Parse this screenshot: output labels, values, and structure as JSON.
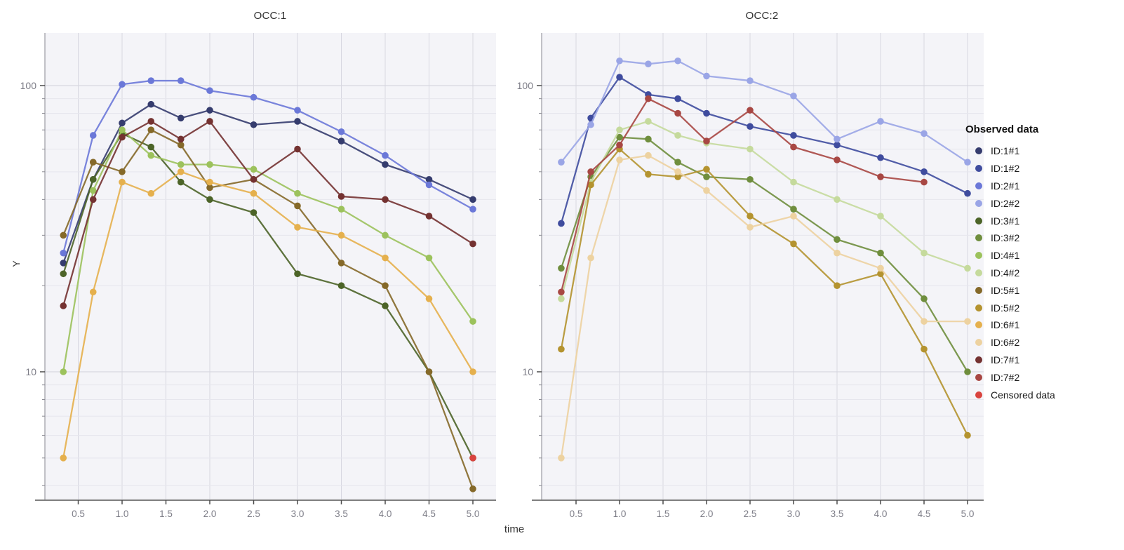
{
  "figure": {
    "bg": "#ffffff",
    "panel_bg": "#f4f4f8",
    "grid_minor": "#e6e6ed",
    "grid_major": "#d7d7e0",
    "spine_color": "#9a9aa2",
    "baseline_color": "#7f7f7f",
    "tick_color": "#4a4a4a",
    "tick_label_color": "#7d7d87"
  },
  "chart_data": {
    "type": "line",
    "xlabel": "time",
    "ylabel": "Y",
    "yscale": "log",
    "ylim": [
      3.5,
      155
    ],
    "x": [
      0.33,
      0.67,
      1.0,
      1.33,
      1.67,
      2.0,
      2.5,
      3.0,
      3.5,
      4.0,
      4.5,
      5.0
    ],
    "xticks": [
      0.5,
      1.0,
      1.5,
      2.0,
      2.5,
      3.0,
      3.5,
      4.0,
      4.5,
      5.0
    ],
    "yticks_major": [
      10,
      100
    ],
    "yticks_minor": [
      4,
      5,
      6,
      7,
      8,
      9,
      20,
      30,
      40,
      50,
      60,
      70,
      80,
      90
    ],
    "panels": [
      {
        "title": "OCC:1",
        "series": [
          {
            "name": "ID:1#1",
            "color": "#353c6e",
            "values": [
              24,
              47,
              74,
              86,
              77,
              82,
              73,
              75,
              64,
              53,
              47,
              40
            ]
          },
          {
            "name": "ID:2#1",
            "color": "#6b78d8",
            "values": [
              26,
              67,
              101,
              104,
              104,
              96,
              91,
              82,
              69,
              57,
              45,
              37
            ]
          },
          {
            "name": "ID:3#1",
            "color": "#4c6428",
            "values": [
              22,
              47,
              68,
              61,
              46,
              40,
              36,
              22,
              20,
              17,
              10,
              5
            ]
          },
          {
            "name": "ID:4#1",
            "color": "#9cc25c",
            "values": [
              10,
              43,
              70,
              57,
              53,
              53,
              51,
              42,
              37,
              30,
              25,
              15
            ]
          },
          {
            "name": "ID:5#1",
            "color": "#856929",
            "values": [
              30,
              54,
              50,
              70,
              62,
              44,
              47,
              38,
              24,
              20,
              10,
              3.9
            ]
          },
          {
            "name": "ID:6#1",
            "color": "#e5b04d",
            "values": [
              5,
              19,
              46,
              42,
              50,
              46,
              42,
              32,
              30,
              25,
              18,
              10
            ]
          },
          {
            "name": "ID:7#1",
            "color": "#743231",
            "values": [
              17,
              40,
              66,
              75,
              65,
              75,
              47,
              60,
              41,
              40,
              35,
              28
            ]
          }
        ],
        "censored": [
          {
            "t": 5.0,
            "v": 5
          }
        ]
      },
      {
        "title": "OCC:2",
        "series": [
          {
            "name": "ID:1#2",
            "color": "#3f4c9e",
            "values": [
              33,
              77,
              107,
              93,
              90,
              80,
              72,
              67,
              62,
              56,
              50,
              42
            ]
          },
          {
            "name": "ID:2#2",
            "color": "#9aa5e6",
            "values": [
              54,
              73,
              122,
              119,
              122,
              108,
              104,
              92,
              65,
              75,
              68,
              54
            ]
          },
          {
            "name": "ID:3#2",
            "color": "#6f8e3d",
            "values": [
              23,
              48,
              66,
              65,
              54,
              48,
              47,
              37,
              29,
              26,
              18,
              10
            ]
          },
          {
            "name": "ID:4#2",
            "color": "#c5da9c",
            "values": [
              18,
              46,
              70,
              75,
              67,
              63,
              60,
              46,
              40,
              35,
              26,
              23
            ]
          },
          {
            "name": "ID:5#2",
            "color": "#b4932f",
            "values": [
              12,
              45,
              60,
              49,
              48,
              51,
              35,
              28,
              20,
              22,
              12,
              6
            ]
          },
          {
            "name": "ID:6#2",
            "color": "#edd2a0",
            "values": [
              5,
              25,
              55,
              57,
              50,
              43,
              32,
              35,
              26,
              23,
              15,
              15
            ]
          },
          {
            "name": "ID:7#2",
            "color": "#a84743",
            "values": [
              19,
              50,
              62,
              90,
              80,
              64,
              82,
              61,
              55,
              48,
              46,
              null
            ]
          }
        ],
        "censored": []
      }
    ],
    "legend": {
      "title": "Observed data",
      "items": [
        {
          "label": "ID:1#1",
          "color": "#353c6e"
        },
        {
          "label": "ID:1#2",
          "color": "#3f4c9e"
        },
        {
          "label": "ID:2#1",
          "color": "#6b78d8"
        },
        {
          "label": "ID:2#2",
          "color": "#9aa5e6"
        },
        {
          "label": "ID:3#1",
          "color": "#4c6428"
        },
        {
          "label": "ID:3#2",
          "color": "#6f8e3d"
        },
        {
          "label": "ID:4#1",
          "color": "#9cc25c"
        },
        {
          "label": "ID:4#2",
          "color": "#c5da9c"
        },
        {
          "label": "ID:5#1",
          "color": "#856929"
        },
        {
          "label": "ID:5#2",
          "color": "#b4932f"
        },
        {
          "label": "ID:6#1",
          "color": "#e5b04d"
        },
        {
          "label": "ID:6#2",
          "color": "#edd2a0"
        },
        {
          "label": "ID:7#1",
          "color": "#743231"
        },
        {
          "label": "ID:7#2",
          "color": "#a84743"
        },
        {
          "label": "Censored data",
          "color": "#d9443f"
        }
      ]
    },
    "censored_color": "#d9443f"
  }
}
